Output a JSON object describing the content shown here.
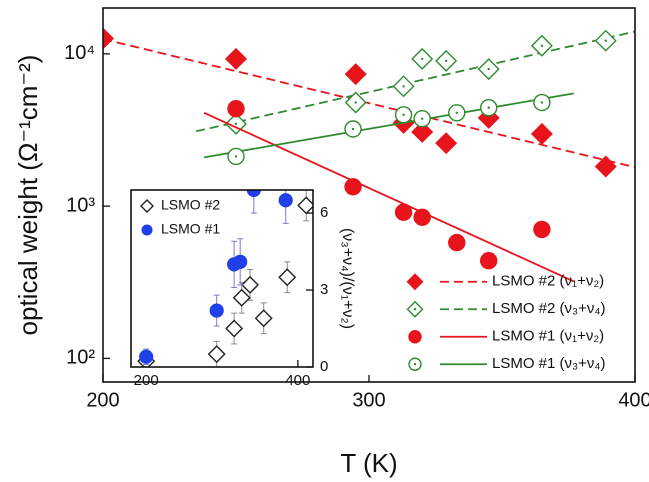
{
  "chart_data": [
    {
      "type": "scatter",
      "x_label": "T (K)",
      "y_label": "optical weight (Ω⁻¹cm⁻²)",
      "log_y": true,
      "xlim": [
        200,
        400
      ],
      "xticks": [
        200,
        300,
        400
      ],
      "ylim": [
        70,
        20000
      ],
      "yticks": [
        {
          "value": 100,
          "label": "10²"
        },
        {
          "value": 1000,
          "label": "10³"
        },
        {
          "value": 10000,
          "label": "10⁴"
        }
      ],
      "legend": "lower right",
      "series": [
        {
          "name": "LSMO #2 (ν₁+ν₂)",
          "color": "#e8141c",
          "marker": "diamond",
          "filled": true,
          "center_dot": false,
          "line_style": "dashed",
          "x": [
            200,
            250,
            295,
            313,
            320,
            329,
            345,
            365,
            389
          ],
          "values": [
            12600,
            9260,
            7360,
            3520,
            3070,
            2590,
            3800,
            2980,
            1820
          ],
          "fit_x": [
            200,
            400
          ],
          "fit_values": [
            12500,
            1800
          ]
        },
        {
          "name": "LSMO #2 (ν₃+ν₄)",
          "color": "#2e8b2e",
          "marker": "diamond",
          "filled": false,
          "center_dot": true,
          "line_style": "dashed",
          "x": [
            250,
            295,
            313,
            320,
            329,
            345,
            365,
            389
          ],
          "values": [
            3470,
            4790,
            6120,
            9260,
            8990,
            7940,
            11300,
            12200
          ],
          "fit_x": [
            235,
            400
          ],
          "fit_values": [
            3100,
            14000
          ]
        },
        {
          "name": "LSMO #1 (ν₁+ν₂)",
          "color": "#e8141c",
          "marker": "circle",
          "filled": true,
          "center_dot": false,
          "line_style": "solid",
          "x": [
            250,
            294,
            313,
            320,
            333,
            345,
            365
          ],
          "values": [
            4360,
            1340,
            912,
            845,
            576,
            438,
            703
          ],
          "fit_x": [
            238,
            377
          ],
          "fit_values": [
            4100,
            320
          ]
        },
        {
          "name": "LSMO #1 (ν₃+ν₄)",
          "color": "#2e8b2e",
          "marker": "circle",
          "filled": false,
          "center_dot": true,
          "line_style": "solid",
          "x": [
            250,
            294,
            313,
            320,
            333,
            345,
            365
          ],
          "values": [
            2120,
            3210,
            3980,
            3750,
            4100,
            4430,
            4790
          ],
          "fit_x": [
            238,
            377
          ],
          "fit_values": [
            2090,
            5500
          ]
        }
      ]
    },
    {
      "type": "scatter",
      "y_label": "(ν₃+ν₄)/(ν₁+ν₂)",
      "y_axis_side": "right",
      "xlim": [
        180,
        420
      ],
      "xticks": [
        200,
        400
      ],
      "ylim": [
        0,
        6.9
      ],
      "yticks": [
        0,
        3,
        6
      ],
      "legend": "upper left",
      "series": [
        {
          "name": "LSMO #2",
          "color": "#222222",
          "error_color": "#8a8a8a",
          "marker": "diamond",
          "filled": false,
          "center_dot": false,
          "x": [
            200,
            293,
            316,
            326,
            337,
            355,
            386,
            411
          ],
          "values": [
            0.23,
            0.5,
            1.5,
            2.7,
            3.2,
            1.9,
            3.5,
            6.3
          ],
          "errors": [
            0.3,
            0.5,
            0.6,
            0.6,
            0.6,
            0.6,
            0.6,
            0.6
          ]
        },
        {
          "name": "LSMO #1",
          "color": "#1f3fe8",
          "error_color": "#7a7ad0",
          "marker": "circle",
          "filled": true,
          "center_dot": false,
          "x": [
            200,
            293,
            316,
            324,
            342,
            384
          ],
          "values": [
            0.4,
            2.2,
            4.0,
            4.1,
            6.9,
            6.5
          ],
          "errors": [
            0.3,
            0.6,
            0.9,
            0.9,
            0.9,
            0.9
          ]
        }
      ]
    }
  ]
}
